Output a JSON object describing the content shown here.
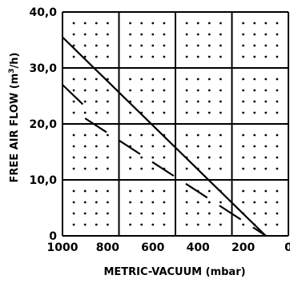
{
  "chart_data": {
    "type": "line",
    "title": "",
    "xlabel": "METRIC-VACUUM (mbar)",
    "ylabel_main": "FREE AIR FLOW (m",
    "ylabel_sup": "3",
    "ylabel_end": "/h)",
    "xlim": [
      1000,
      0
    ],
    "ylim": [
      0,
      40
    ],
    "x_ticks": [
      "1000",
      "800",
      "600",
      "400",
      "200",
      "0"
    ],
    "y_ticks": [
      "0",
      "10,0",
      "20,0",
      "30,0",
      "40,0"
    ],
    "grid": true,
    "series": [
      {
        "style": "solid",
        "x": [
          1000,
          100
        ],
        "y": [
          35.5,
          0
        ]
      },
      {
        "style": "solid",
        "x": [
          1000,
          910
        ],
        "y": [
          27,
          23.5
        ]
      },
      {
        "style": "dashed",
        "x": [
          900,
          80
        ],
        "y": [
          21,
          -0.5
        ]
      }
    ]
  }
}
